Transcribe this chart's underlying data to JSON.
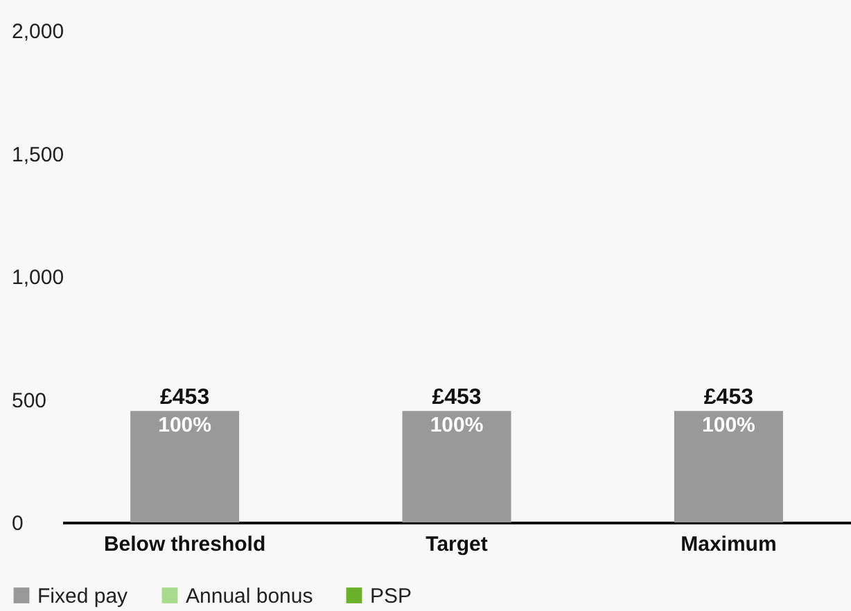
{
  "chart_data": {
    "type": "bar",
    "stacked": true,
    "categories": [
      "Below threshold",
      "Target",
      "Maximum"
    ],
    "series": [
      {
        "name": "Fixed pay",
        "color": "#999999",
        "values": [
          453,
          453,
          453
        ]
      },
      {
        "name": "Annual bonus",
        "color": "#a9db8c",
        "values": [
          0,
          0,
          0
        ]
      },
      {
        "name": "PSP",
        "color": "#6cb12a",
        "values": [
          0,
          0,
          0
        ]
      }
    ],
    "totals": [
      "£453",
      "£453",
      "£453"
    ],
    "annotations": [
      {
        "text": "100%",
        "x": "Below threshold",
        "y": 453
      },
      {
        "text": "100%",
        "x": "Target",
        "y": 453
      },
      {
        "text": "100%",
        "x": "Maximum",
        "y": 453
      }
    ],
    "ylim": [
      0,
      2000
    ],
    "yticks": [
      0,
      500,
      {
        "value": 1000,
        "label": "1,000"
      },
      {
        "value": 1500,
        "label": "1,500"
      },
      {
        "value": 2000,
        "label": "2,000"
      }
    ],
    "grid": false,
    "legend": "bottom left"
  }
}
